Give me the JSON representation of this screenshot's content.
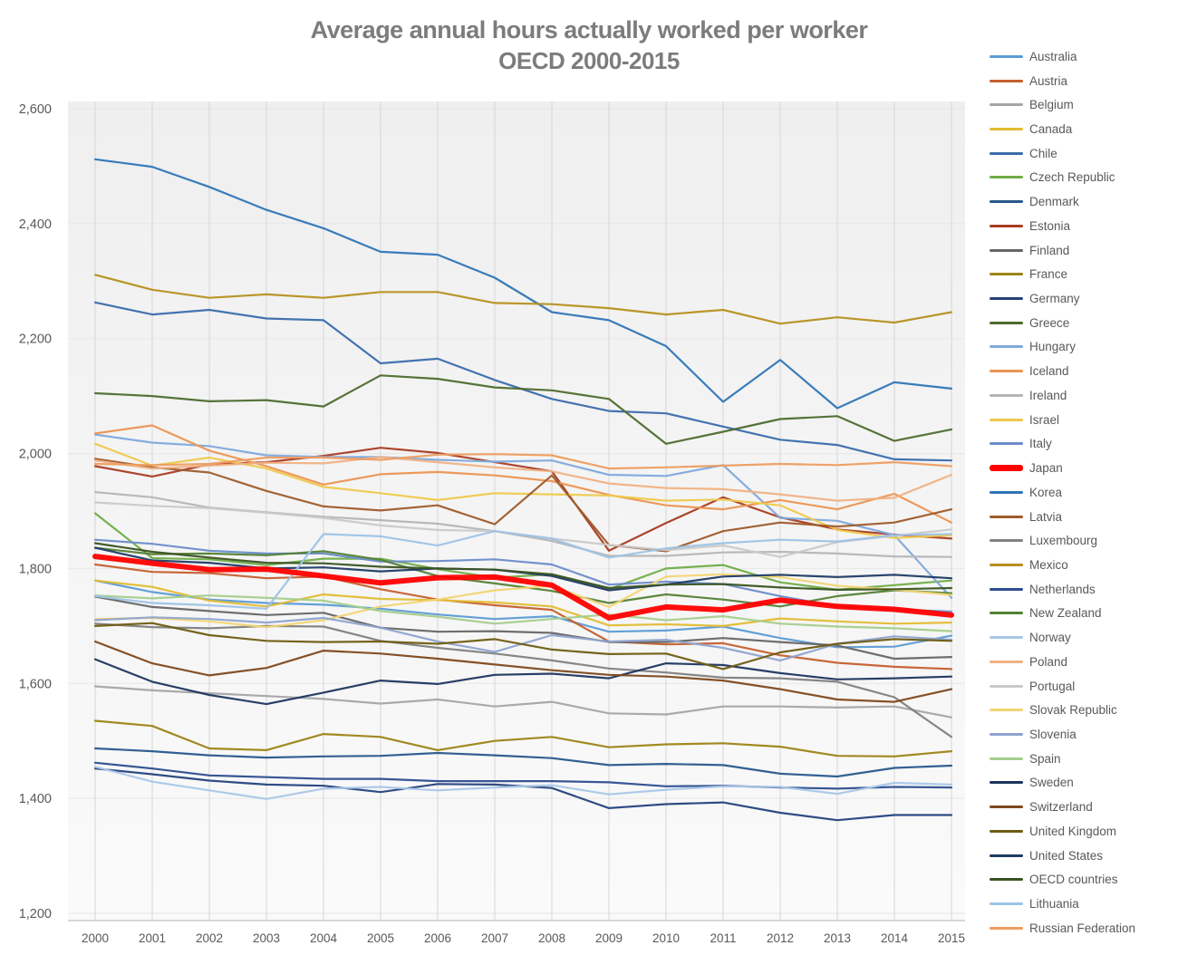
{
  "title": {
    "line1": "Average annual hours actually worked per worker",
    "line2": "OECD 2000-2015"
  },
  "axes": {
    "y_tick_labels": [
      "1,200",
      "1,400",
      "1,600",
      "1,800",
      "2,000",
      "2,200",
      "2,400",
      "2,600"
    ],
    "x_tick_labels": [
      "2000",
      "2001",
      "2002",
      "2003",
      "2004",
      "2005",
      "2006",
      "2007",
      "2008",
      "2009",
      "2010",
      "2011",
      "2012",
      "2013",
      "2014",
      "2015"
    ],
    "label_color": "#595959",
    "grid_vertical_color": "#d6d6d6",
    "grid_horizontal_color": "#e7e7e7",
    "axis_line_color": "#c0c0c0",
    "plot_bg_top": "#efefef",
    "plot_bg_bottom": "#fafafa"
  },
  "chart_data": {
    "type": "line",
    "title": "Average annual hours actually worked per worker OECD 2000-2015",
    "xlabel": "",
    "ylabel": "",
    "x": [
      2000,
      2001,
      2002,
      2003,
      2004,
      2005,
      2006,
      2007,
      2008,
      2009,
      2010,
      2011,
      2012,
      2013,
      2014,
      2015
    ],
    "ylim": [
      1200,
      2600
    ],
    "ytick_interval": 200,
    "grid": "on",
    "legend_position": "right",
    "highlight_series": "Japan",
    "series": [
      {
        "name": "Australia",
        "color": "#5B9BD5",
        "values": [
          1779,
          1759,
          1746,
          1740,
          1737,
          1730,
          1720,
          1712,
          1717,
          1690,
          1692,
          1699,
          1679,
          1663,
          1664,
          1683
        ]
      },
      {
        "name": "Austria",
        "color": "#C55F2E",
        "values": [
          1807,
          1794,
          1792,
          1783,
          1786,
          1764,
          1746,
          1736,
          1728,
          1673,
          1668,
          1670,
          1649,
          1636,
          1629,
          1625
        ]
      },
      {
        "name": "Belgium",
        "color": "#A5A5A5",
        "values": [
          1595,
          1588,
          1583,
          1578,
          1573,
          1565,
          1572,
          1560,
          1568,
          1548,
          1546,
          1560,
          1560,
          1558,
          1560,
          1541
        ]
      },
      {
        "name": "Canada",
        "color": "#E2BC33",
        "values": [
          1779,
          1768,
          1744,
          1734,
          1755,
          1747,
          1745,
          1741,
          1734,
          1701,
          1703,
          1700,
          1713,
          1708,
          1704,
          1706
        ]
      },
      {
        "name": "Chile",
        "color": "#3A6BAC",
        "values": [
          2263,
          2242,
          2250,
          2235,
          2232,
          2157,
          2165,
          2128,
          2095,
          2074,
          2070,
          2047,
          2024,
          2015,
          1990,
          1988
        ]
      },
      {
        "name": "Czech Republic",
        "color": "#70AD47",
        "values": [
          1896,
          1818,
          1816,
          1806,
          1817,
          1817,
          1799,
          1784,
          1790,
          1764,
          1800,
          1806,
          1776,
          1763,
          1771,
          1779
        ]
      },
      {
        "name": "Denmark",
        "color": "#28578C",
        "values": [
          1487,
          1482,
          1475,
          1471,
          1473,
          1474,
          1479,
          1475,
          1470,
          1458,
          1460,
          1458,
          1443,
          1438,
          1453,
          1457
        ]
      },
      {
        "name": "Estonia",
        "color": "#A93B22",
        "values": [
          1978,
          1960,
          1981,
          1985,
          1996,
          2010,
          2001,
          1985,
          1969,
          1831,
          1879,
          1924,
          1889,
          1868,
          1859,
          1852
        ]
      },
      {
        "name": "Finland",
        "color": "#666666",
        "values": [
          1751,
          1733,
          1726,
          1719,
          1723,
          1697,
          1690,
          1691,
          1688,
          1672,
          1672,
          1679,
          1672,
          1666,
          1643,
          1646
        ]
      },
      {
        "name": "France",
        "color": "#9C8315",
        "values": [
          1535,
          1526,
          1487,
          1484,
          1512,
          1507,
          1484,
          1500,
          1507,
          1489,
          1494,
          1496,
          1490,
          1474,
          1473,
          1482
        ]
      },
      {
        "name": "Germany",
        "color": "#24427C",
        "values": [
          1452,
          1442,
          1431,
          1424,
          1422,
          1411,
          1425,
          1424,
          1418,
          1383,
          1390,
          1393,
          1375,
          1362,
          1371,
          1371
        ]
      },
      {
        "name": "Greece",
        "color": "#4D6B2E",
        "values": [
          2105,
          2100,
          2091,
          2093,
          2082,
          2136,
          2130,
          2115,
          2110,
          2095,
          2017,
          2038,
          2060,
          2065,
          2022,
          2042
        ]
      },
      {
        "name": "Hungary",
        "color": "#7FA9DC",
        "values": [
          2033,
          2019,
          2013,
          1997,
          1994,
          1994,
          1989,
          1986,
          1988,
          1963,
          1961,
          1980,
          1888,
          1883,
          1858,
          1749
        ]
      },
      {
        "name": "Iceland",
        "color": "#EC9352",
        "values": [
          2035,
          2049,
          2005,
          1978,
          1946,
          1964,
          1968,
          1962,
          1952,
          1928,
          1910,
          1903,
          1919,
          1903,
          1930,
          1880
        ]
      },
      {
        "name": "Ireland",
        "color": "#B5B5B5",
        "values": [
          1933,
          1924,
          1906,
          1898,
          1890,
          1884,
          1878,
          1865,
          1848,
          1822,
          1822,
          1828,
          1829,
          1826,
          1821,
          1820
        ]
      },
      {
        "name": "Israel",
        "color": "#EFC94C",
        "values": [
          2017,
          1979,
          1993,
          1974,
          1942,
          1931,
          1919,
          1931,
          1929,
          1927,
          1918,
          1920,
          1910,
          1867,
          1853,
          1858
        ]
      },
      {
        "name": "Italy",
        "color": "#6B8CCB",
        "values": [
          1850,
          1843,
          1831,
          1826,
          1826,
          1812,
          1813,
          1816,
          1807,
          1772,
          1777,
          1773,
          1752,
          1734,
          1729,
          1725
        ]
      },
      {
        "name": "Japan",
        "color": "#FF0000",
        "values": [
          1821,
          1809,
          1798,
          1799,
          1787,
          1775,
          1784,
          1785,
          1771,
          1714,
          1733,
          1728,
          1745,
          1734,
          1729,
          1719
        ]
      },
      {
        "name": "Korea",
        "color": "#2E75B6",
        "values": [
          2512,
          2499,
          2464,
          2424,
          2392,
          2351,
          2346,
          2306,
          2246,
          2232,
          2187,
          2090,
          2163,
          2079,
          2124,
          2113
        ]
      },
      {
        "name": "Latvia",
        "color": "#9E5B2B",
        "values": [
          1991,
          1976,
          1967,
          1935,
          1908,
          1901,
          1910,
          1877,
          1962,
          1841,
          1830,
          1865,
          1880,
          1873,
          1880,
          1903
        ]
      },
      {
        "name": "Luxembourg",
        "color": "#808080",
        "values": [
          1704,
          1698,
          1696,
          1700,
          1699,
          1674,
          1662,
          1652,
          1640,
          1626,
          1619,
          1610,
          1609,
          1603,
          1576,
          1507
        ]
      },
      {
        "name": "Mexico",
        "color": "#B6901F",
        "values": [
          2311,
          2285,
          2271,
          2277,
          2271,
          2281,
          2281,
          2262,
          2260,
          2253,
          2242,
          2250,
          2226,
          2237,
          2228,
          2246
        ]
      },
      {
        "name": "Netherlands",
        "color": "#2C4D8E",
        "values": [
          1462,
          1452,
          1440,
          1437,
          1434,
          1434,
          1430,
          1430,
          1430,
          1428,
          1421,
          1422,
          1419,
          1417,
          1420,
          1419
        ]
      },
      {
        "name": "New Zealand",
        "color": "#538135",
        "values": [
          1836,
          1825,
          1826,
          1823,
          1830,
          1815,
          1787,
          1774,
          1761,
          1740,
          1755,
          1746,
          1734,
          1752,
          1762,
          1757
        ]
      },
      {
        "name": "Norway",
        "color": "#A9C7E8",
        "values": [
          1455,
          1429,
          1414,
          1399,
          1417,
          1420,
          1414,
          1419,
          1423,
          1407,
          1415,
          1421,
          1420,
          1408,
          1427,
          1424
        ]
      },
      {
        "name": "Poland",
        "color": "#F0B183",
        "values": [
          1988,
          1974,
          1979,
          1984,
          1983,
          1994,
          1985,
          1976,
          1969,
          1948,
          1940,
          1938,
          1929,
          1918,
          1923,
          1963
        ]
      },
      {
        "name": "Portugal",
        "color": "#C9C9C9",
        "values": [
          1915,
          1909,
          1905,
          1897,
          1888,
          1875,
          1867,
          1865,
          1852,
          1841,
          1832,
          1840,
          1820,
          1846,
          1857,
          1868
        ]
      },
      {
        "name": "Slovak Republic",
        "color": "#F3D573",
        "values": [
          1712,
          1714,
          1708,
          1698,
          1710,
          1734,
          1746,
          1762,
          1770,
          1733,
          1786,
          1790,
          1785,
          1770,
          1763,
          1754
        ]
      },
      {
        "name": "Slovenia",
        "color": "#8FA3D0",
        "values": [
          1710,
          1715,
          1712,
          1706,
          1714,
          1697,
          1673,
          1655,
          1684,
          1673,
          1676,
          1662,
          1640,
          1669,
          1682,
          1676
        ]
      },
      {
        "name": "Spain",
        "color": "#A4CE8B",
        "values": [
          1753,
          1748,
          1753,
          1749,
          1744,
          1726,
          1716,
          1704,
          1712,
          1720,
          1710,
          1717,
          1704,
          1699,
          1696,
          1691
        ]
      },
      {
        "name": "Sweden",
        "color": "#1C355E",
        "values": [
          1642,
          1603,
          1580,
          1564,
          1584,
          1605,
          1599,
          1615,
          1617,
          1609,
          1635,
          1632,
          1618,
          1607,
          1609,
          1612
        ]
      },
      {
        "name": "Switzerland",
        "color": "#7E481C",
        "values": [
          1673,
          1635,
          1614,
          1627,
          1657,
          1652,
          1643,
          1633,
          1623,
          1615,
          1612,
          1605,
          1590,
          1572,
          1568,
          1590
        ]
      },
      {
        "name": "United Kingdom",
        "color": "#6F5B11",
        "values": [
          1700,
          1705,
          1684,
          1674,
          1672,
          1673,
          1669,
          1677,
          1659,
          1651,
          1652,
          1625,
          1654,
          1669,
          1677,
          1674
        ]
      },
      {
        "name": "United States",
        "color": "#1F3B66",
        "values": [
          1836,
          1814,
          1810,
          1800,
          1802,
          1795,
          1800,
          1798,
          1787,
          1762,
          1772,
          1786,
          1789,
          1785,
          1789,
          1783
        ]
      },
      {
        "name": "OECD countries",
        "color": "#3A5322",
        "values": [
          1844,
          1829,
          1819,
          1810,
          1809,
          1803,
          1800,
          1798,
          1790,
          1766,
          1772,
          1773,
          1767,
          1763,
          1764,
          1766
        ]
      },
      {
        "name": "Lithuania",
        "color": "#9DC3E6",
        "values": [
          1752,
          1740,
          1736,
          1730,
          1860,
          1856,
          1840,
          1865,
          1852,
          1819,
          1835,
          1844,
          1850,
          1847,
          1858,
          1860
        ]
      },
      {
        "name": "Russian Federation",
        "color": "#ED9D60",
        "values": [
          1982,
          1980,
          1982,
          1993,
          1993,
          1989,
          1998,
          1999,
          1997,
          1974,
          1976,
          1979,
          1982,
          1980,
          1985,
          1978
        ]
      }
    ]
  }
}
